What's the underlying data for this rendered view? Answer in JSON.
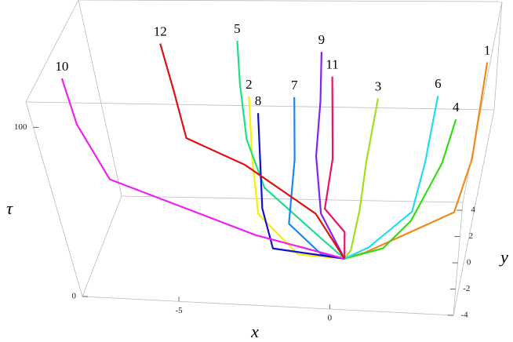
{
  "chart_data": {
    "type": "line3d",
    "x_label": "x",
    "y_label": "y",
    "z_label": "τ",
    "xlim": [
      -8.2,
      4.1
    ],
    "ylim": [
      -4,
      4.6
    ],
    "zlim": [
      0,
      115
    ],
    "xticks": [
      -5,
      0
    ],
    "yticks": [
      -4,
      -2,
      0,
      2,
      4
    ],
    "zticks": [
      0,
      100
    ],
    "series": [
      {
        "name": "1",
        "color": "#f08a1c",
        "x": [
          0.2,
          0.9,
          3.7,
          4.0,
          3.9
        ],
        "y": [
          0,
          0,
          1,
          2,
          2
        ],
        "tau": [
          0,
          4,
          21,
          44,
          99
        ]
      },
      {
        "name": "2",
        "color": "#ffee00",
        "x": [
          0.2,
          -1.4,
          -2.7,
          -2.8,
          -2.8
        ],
        "y": [
          0,
          0,
          0,
          0,
          0
        ],
        "tau": [
          0,
          1.5,
          24,
          56,
          92
        ]
      },
      {
        "name": "3",
        "color": "#a0e020",
        "x": [
          0.2,
          0.4,
          0.6,
          0.7,
          0.9
        ],
        "y": [
          0,
          0,
          0,
          0,
          0
        ],
        "tau": [
          0,
          5,
          28,
          56,
          92
        ]
      },
      {
        "name": "4",
        "color": "#33dd11",
        "x": [
          0.2,
          1.5,
          2.3,
          3.0,
          3.2
        ],
        "y": [
          0,
          -1,
          -1,
          -1,
          -1
        ],
        "tau": [
          0,
          14,
          30,
          63,
          88
        ]
      },
      {
        "name": "5",
        "color": "#22dd88",
        "x": [
          0.2,
          -0.7,
          -2.7,
          -3.2,
          -3.3,
          -3.3
        ],
        "y": [
          0,
          1,
          2,
          2,
          2,
          2
        ],
        "tau": [
          0,
          4,
          25,
          53,
          85,
          110
        ]
      },
      {
        "name": "6",
        "color": "#22ddee",
        "x": [
          0.2,
          1.0,
          2.3,
          2.5,
          2.6
        ],
        "y": [
          0,
          0,
          0,
          0,
          0
        ],
        "tau": [
          0,
          7,
          28,
          56,
          94
        ]
      },
      {
        "name": "7",
        "color": "#1a88ee",
        "x": [
          0.2,
          -0.6,
          -1.7,
          -1.5,
          -1.5
        ],
        "y": [
          0,
          0,
          0,
          0,
          0
        ],
        "tau": [
          0,
          2,
          19,
          56,
          92
        ]
      },
      {
        "name": "8",
        "color": "#1111cc",
        "x": [
          0.2,
          -2.2,
          -2.5,
          -2.5,
          -2.5
        ],
        "y": [
          0,
          -0.5,
          -0.5,
          -0.5,
          -0.5
        ],
        "tau": [
          0,
          8,
          31,
          59,
          86
        ]
      },
      {
        "name": "9",
        "color": "#8822ee",
        "x": [
          0.2,
          -0.8,
          -1.0,
          -0.9,
          -0.9
        ],
        "y": [
          0,
          2,
          2,
          2,
          2
        ],
        "tau": [
          0,
          11,
          44,
          76,
          104
        ]
      },
      {
        "name": "10",
        "color": "#ee22ee",
        "x": [
          0.2,
          -2.7,
          -7.1,
          -7.7,
          -7.8
        ],
        "y": [
          0,
          -1,
          -1,
          -1,
          -1
        ],
        "tau": [
          0,
          19,
          49,
          81,
          108
        ]
      },
      {
        "name": "11",
        "color": "#ee1166",
        "x": [
          0.2,
          0.1,
          -0.6,
          -0.4,
          -0.5
        ],
        "y": [
          0,
          1,
          1,
          1,
          1
        ],
        "tau": [
          0,
          8,
          21,
          50,
          97
        ]
      },
      {
        "name": "12",
        "color": "#dd1111",
        "x": [
          0.2,
          -0.9,
          -3.3,
          -5.1,
          -5.3,
          -5.5
        ],
        "y": [
          0,
          1,
          2,
          2,
          2,
          2
        ],
        "tau": [
          0,
          18,
          38,
          53,
          81,
          108
        ]
      }
    ]
  }
}
